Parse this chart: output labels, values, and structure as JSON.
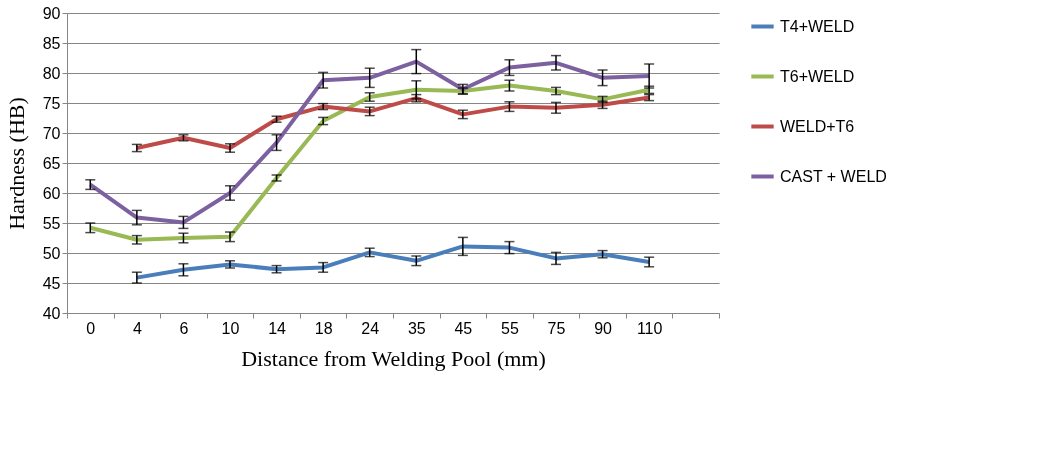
{
  "chart_data": {
    "type": "line",
    "xlabel": "Distance from Welding Pool (mm)",
    "ylabel": "Hardness (HB)",
    "categories": [
      "0",
      "4",
      "6",
      "10",
      "14",
      "18",
      "24",
      "35",
      "45",
      "55",
      "75",
      "90",
      "110",
      null
    ],
    "ylim": [
      40,
      90
    ],
    "yticks": [
      40,
      45,
      50,
      55,
      60,
      65,
      70,
      75,
      80,
      85,
      90
    ],
    "grid": "y",
    "legend": "right",
    "marker": "none",
    "line_style": "solid",
    "series": [
      {
        "name": "T4+WELD",
        "color": "#4a7ebb",
        "values": [
          null,
          45.9,
          47.2,
          48.1,
          47.3,
          47.6,
          50.1,
          48.7,
          51.1,
          50.9,
          49.1,
          49.8,
          48.5,
          null
        ],
        "errors": [
          null,
          0.9,
          1.0,
          0.6,
          0.6,
          0.8,
          0.7,
          0.8,
          1.5,
          1.0,
          1.0,
          0.6,
          0.8,
          null
        ]
      },
      {
        "name": "T6+WELD",
        "color": "#98b954",
        "values": [
          54.2,
          52.2,
          52.5,
          52.7,
          62.5,
          72,
          76,
          77.2,
          77,
          77.9,
          77,
          75.6,
          77.2,
          null
        ],
        "errors": [
          0.8,
          0.7,
          0.8,
          0.8,
          0.5,
          0.6,
          0.7,
          1.5,
          0.5,
          0.9,
          0.6,
          0.5,
          0.6,
          null
        ]
      },
      {
        "name": "WELD+T6",
        "color": "#be4b48",
        "values": [
          null,
          67.5,
          69.2,
          67.5,
          72.3,
          74.4,
          73.6,
          75.8,
          73.1,
          74.4,
          74.2,
          74.7,
          75.9,
          null
        ],
        "errors": [
          null,
          0.6,
          0.5,
          0.7,
          0.5,
          0.5,
          0.7,
          0.6,
          0.7,
          0.8,
          0.9,
          0.6,
          0.5,
          null
        ]
      },
      {
        "name": "CAST + WELD",
        "color": "#7d60a0",
        "values": [
          61.4,
          55.9,
          55.1,
          60,
          68.4,
          78.8,
          79.2,
          81.9,
          77.3,
          80.9,
          81.7,
          79.2,
          79.5,
          null
        ],
        "errors": [
          0.8,
          1.2,
          1.0,
          1.2,
          1.3,
          1.3,
          1.6,
          2.0,
          0.8,
          1.3,
          1.2,
          1.3,
          2.0,
          null
        ]
      }
    ]
  }
}
